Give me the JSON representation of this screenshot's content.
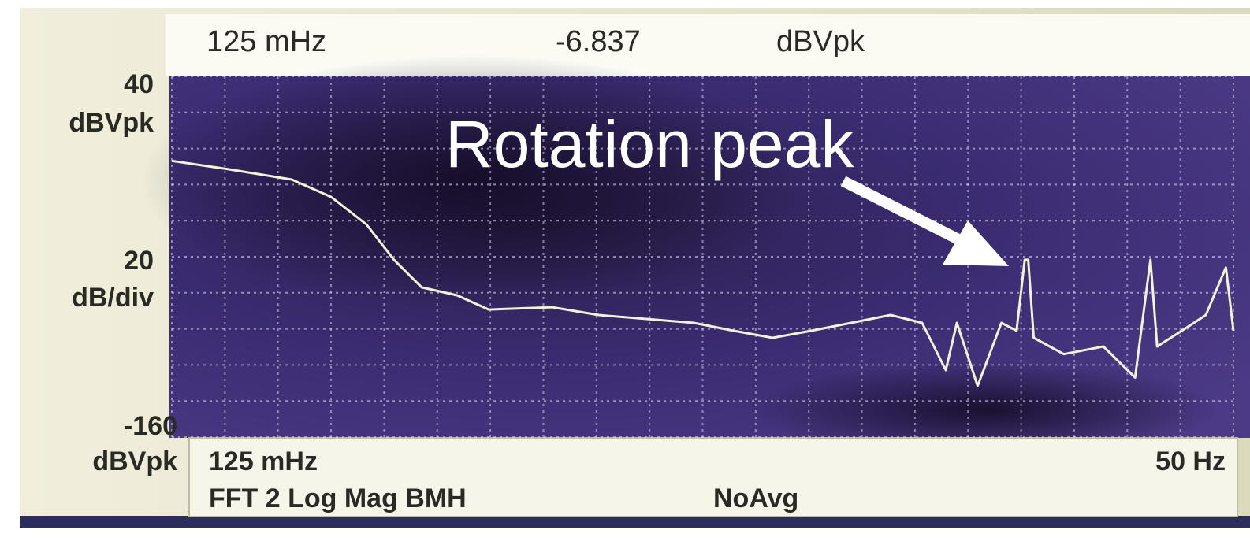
{
  "chart_data": {
    "type": "line",
    "marker": {
      "x_label": "125 mHz",
      "value": -6.837,
      "unit": "dBVpk"
    },
    "annotation": "Rotation peak",
    "measurement": "FFT 2 Log Mag BMH",
    "averaging": "NoAvg",
    "y_unit": "dBVpk",
    "y_per_div": 20,
    "y_per_div_unit": "dB/div",
    "xlim": [
      0.125,
      50
    ],
    "xscale": "log",
    "xticks": [
      {
        "value": 0.125,
        "label": "125 mHz"
      },
      {
        "value": 50,
        "label": "50 Hz"
      }
    ],
    "ylim": [
      -160,
      40
    ],
    "yticks": [
      40,
      20,
      0,
      -20,
      -40,
      -60,
      -80,
      -100,
      -120,
      -140,
      -160
    ],
    "grid": true,
    "series": [
      {
        "color": "#f3f1da",
        "x": [
          0.125,
          0.172,
          0.246,
          0.307,
          0.375,
          0.438,
          0.512,
          0.625,
          0.748,
          1.07,
          1.39,
          1.82,
          2.38,
          2.97,
          3.71,
          4.63,
          5.78,
          7.22,
          8.63,
          9.86,
          10.5,
          11.8,
          13.5,
          14.7,
          15.4,
          15.7,
          16.2,
          19.2,
          24.0,
          28.7,
          31.3,
          32.5,
          37.4,
          42.8,
          47.9,
          50
        ],
        "values": [
          -6.837,
          -11.5,
          -17.2,
          -26.8,
          -42.1,
          -61.7,
          -77,
          -81.4,
          -89.3,
          -88,
          -92.3,
          -94.5,
          -96.7,
          -101,
          -105,
          -101,
          -96.7,
          -92.3,
          -96.7,
          -122.9,
          -96.7,
          -131.6,
          -96.7,
          -101,
          -61.7,
          -61.7,
          -105,
          -114,
          -109.8,
          -127,
          -61.7,
          -109.8,
          -101,
          -92.3,
          -66,
          -101
        ]
      }
    ]
  }
}
